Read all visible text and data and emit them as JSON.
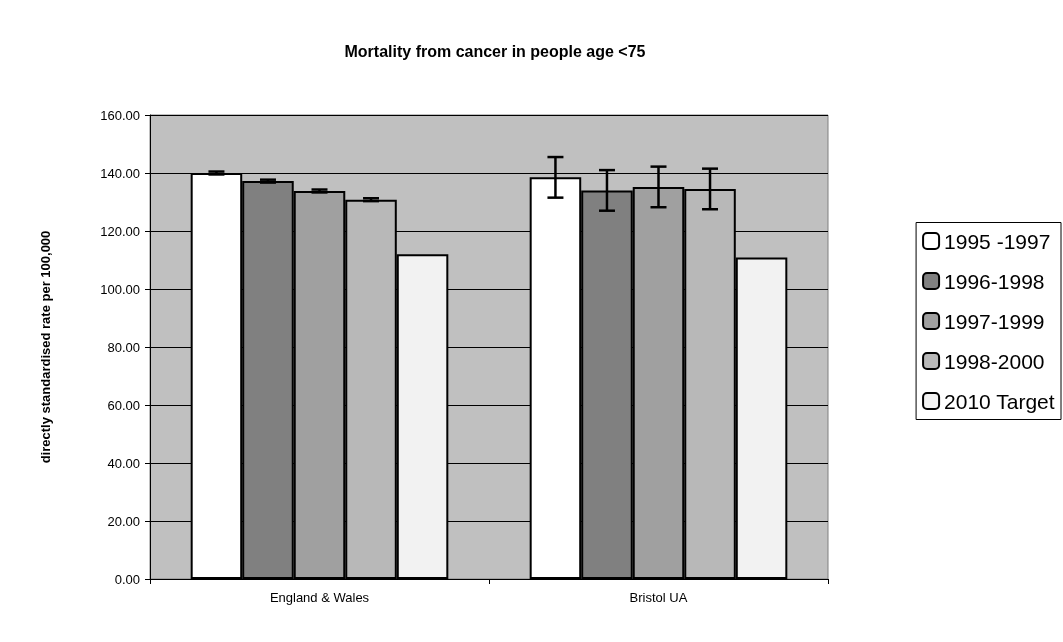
{
  "chart_data": {
    "type": "bar",
    "title": "Mortality from cancer in people age <75",
    "ylabel": "directly standardised rate per 100,000",
    "categories": [
      "England & Wales",
      "Bristol UA"
    ],
    "series": [
      {
        "name": "1995 -1997",
        "color": "#ffffff",
        "values": [
          140.0,
          138.5
        ],
        "errors": [
          0.5,
          7.0
        ]
      },
      {
        "name": "1996-1998",
        "color": "#808080",
        "values": [
          137.2,
          134.0
        ],
        "errors": [
          0.5,
          7.0
        ]
      },
      {
        "name": "1997-1999",
        "color": "#a0a0a0",
        "values": [
          133.8,
          135.2
        ],
        "errors": [
          0.5,
          7.0
        ]
      },
      {
        "name": "1998-2000",
        "color": "#b8b8b8",
        "values": [
          130.8,
          134.5
        ],
        "errors": [
          0.5,
          7.0
        ]
      },
      {
        "name": "2010 Target",
        "color": "#f2f2f2",
        "values": [
          112.0,
          110.9
        ]
      }
    ],
    "ylim": [
      0,
      160
    ],
    "yticks": [
      {
        "value": 0,
        "label": "0.00"
      },
      {
        "value": 20,
        "label": "20.00"
      },
      {
        "value": 40,
        "label": "40.00"
      },
      {
        "value": 60,
        "label": "60.00"
      },
      {
        "value": 80,
        "label": "80.00"
      },
      {
        "value": 100,
        "label": "100.00"
      },
      {
        "value": 120,
        "label": "120.00"
      },
      {
        "value": 140,
        "label": "140.00"
      },
      {
        "value": 160,
        "label": "160.00"
      }
    ],
    "grid": "y",
    "legend": "right"
  }
}
